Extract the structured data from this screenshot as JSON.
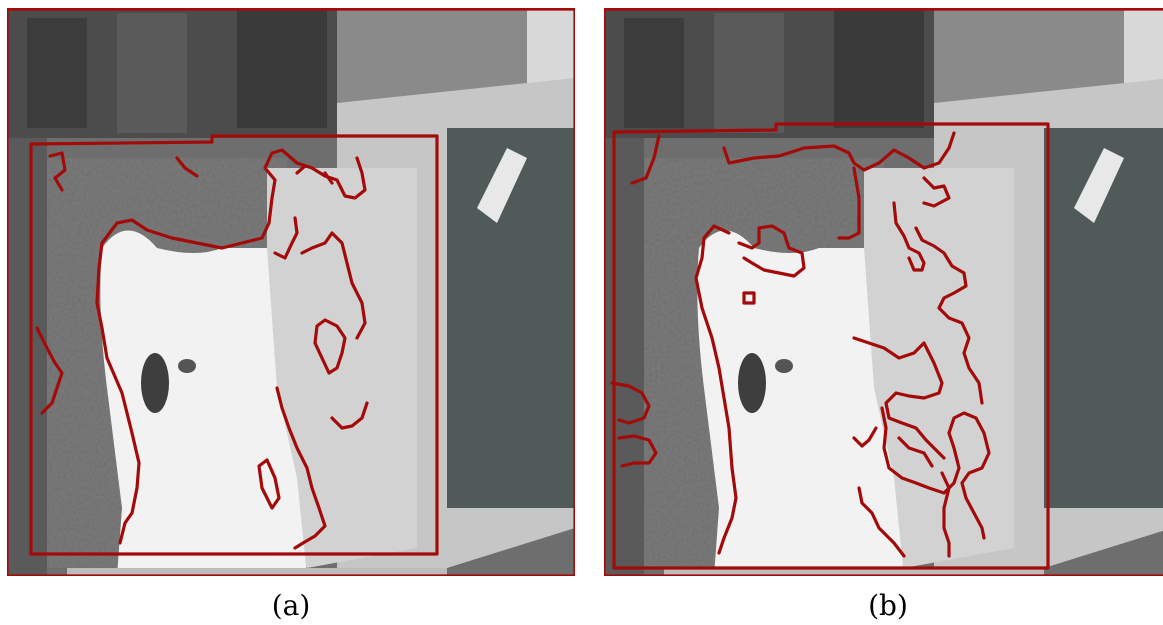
{
  "figure": {
    "panels": [
      {
        "id": "a",
        "label": "(a)",
        "description_icon": "teddy-bear-photo-with-contours"
      },
      {
        "id": "b",
        "label": "(b)",
        "description_icon": "teddy-bear-photo-with-contours"
      }
    ],
    "colors": {
      "contour": "#a30a0a",
      "background_dark": "#5a5a5a",
      "background_light": "#e6e6e6",
      "bear": "#f4f4f4"
    }
  }
}
